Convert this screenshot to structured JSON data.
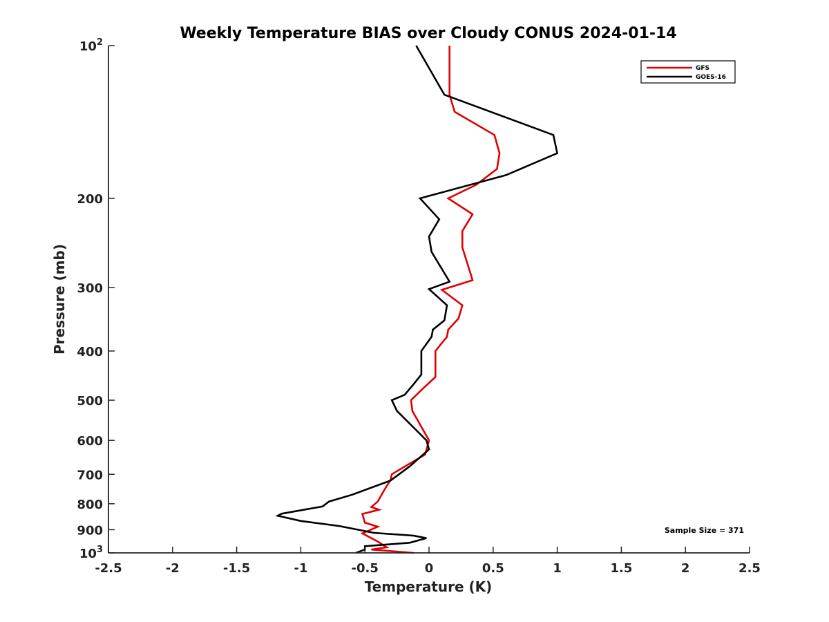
{
  "chart_data": {
    "type": "line",
    "title": "Weekly Temperature BIAS over Cloudy CONUS 2024-01-14",
    "xlabel": "Temperature (K)",
    "ylabel": "Pressure (mb)",
    "xlim": [
      -2.5,
      2.5
    ],
    "ylim": [
      100,
      1000
    ],
    "y_scale": "log",
    "y_reversed": true,
    "x_ticks": [
      -2.5,
      -2,
      -1.5,
      -1,
      -0.5,
      0,
      0.5,
      1,
      1.5,
      2,
      2.5
    ],
    "x_tick_labels": [
      "-2.5",
      "-2",
      "-1.5",
      "-1",
      "-0.5",
      "0",
      "0.5",
      "1",
      "1.5",
      "2",
      "2.5"
    ],
    "y_ticks": [
      100,
      200,
      300,
      400,
      500,
      600,
      700,
      800,
      900,
      1000
    ],
    "y_tick_labels": [
      {
        "base": "10",
        "sup": "2"
      },
      {
        "base": "200"
      },
      {
        "base": "300"
      },
      {
        "base": "400"
      },
      {
        "base": "500"
      },
      {
        "base": "600"
      },
      {
        "base": "700"
      },
      {
        "base": "800"
      },
      {
        "base": "900"
      },
      {
        "base": "10",
        "sup": "3"
      }
    ],
    "grid": false,
    "legend_position": "top-right",
    "series": [
      {
        "name": "GFS",
        "color": "#e00000",
        "points": [
          [
            0.16,
            100
          ],
          [
            0.16,
            125
          ],
          [
            0.2,
            135
          ],
          [
            0.51,
            150
          ],
          [
            0.55,
            163
          ],
          [
            0.53,
            175
          ],
          [
            0.37,
            188
          ],
          [
            0.15,
            200
          ],
          [
            0.34,
            215
          ],
          [
            0.26,
            232
          ],
          [
            0.26,
            250
          ],
          [
            0.34,
            290
          ],
          [
            0.1,
            303
          ],
          [
            0.26,
            325
          ],
          [
            0.23,
            345
          ],
          [
            0.15,
            363
          ],
          [
            0.14,
            375
          ],
          [
            0.05,
            400
          ],
          [
            0.05,
            450
          ],
          [
            -0.05,
            475
          ],
          [
            -0.14,
            500
          ],
          [
            -0.13,
            525
          ],
          [
            0.0,
            600
          ],
          [
            -0.03,
            640
          ],
          [
            -0.25,
            690
          ],
          [
            -0.29,
            700
          ],
          [
            -0.3,
            718
          ],
          [
            -0.36,
            760
          ],
          [
            -0.4,
            792
          ],
          [
            -0.45,
            812
          ],
          [
            -0.39,
            822
          ],
          [
            -0.52,
            838
          ],
          [
            -0.5,
            872
          ],
          [
            -0.4,
            888
          ],
          [
            -0.52,
            915
          ],
          [
            -0.4,
            950
          ],
          [
            -0.33,
            975
          ],
          [
            -0.45,
            985
          ],
          [
            -0.12,
            1000
          ]
        ]
      },
      {
        "name": "GOES-16",
        "color": "#000000",
        "points": [
          [
            -0.1,
            100
          ],
          [
            0.12,
            125
          ],
          [
            0.97,
            150
          ],
          [
            1.0,
            163
          ],
          [
            0.6,
            180
          ],
          [
            -0.07,
            200
          ],
          [
            0.08,
            220
          ],
          [
            0.0,
            238
          ],
          [
            0.02,
            255
          ],
          [
            0.16,
            292
          ],
          [
            0.0,
            302
          ],
          [
            0.14,
            325
          ],
          [
            0.12,
            348
          ],
          [
            0.03,
            363
          ],
          [
            0.02,
            375
          ],
          [
            -0.06,
            400
          ],
          [
            -0.06,
            445
          ],
          [
            -0.12,
            465
          ],
          [
            -0.19,
            488
          ],
          [
            -0.29,
            500
          ],
          [
            -0.25,
            525
          ],
          [
            -0.02,
            600
          ],
          [
            0.0,
            625
          ],
          [
            -0.15,
            675
          ],
          [
            -0.3,
            720
          ],
          [
            -0.6,
            768
          ],
          [
            -0.78,
            792
          ],
          [
            -0.83,
            810
          ],
          [
            -1.15,
            837
          ],
          [
            -1.18,
            845
          ],
          [
            -1.0,
            865
          ],
          [
            -0.7,
            885
          ],
          [
            -0.43,
            913
          ],
          [
            -0.12,
            925
          ],
          [
            -0.02,
            935
          ],
          [
            -0.15,
            955
          ],
          [
            -0.5,
            970
          ],
          [
            -0.5,
            985
          ],
          [
            -0.57,
            1000
          ]
        ]
      }
    ],
    "annotations": [
      {
        "text": "Sample Size = 371"
      }
    ]
  }
}
